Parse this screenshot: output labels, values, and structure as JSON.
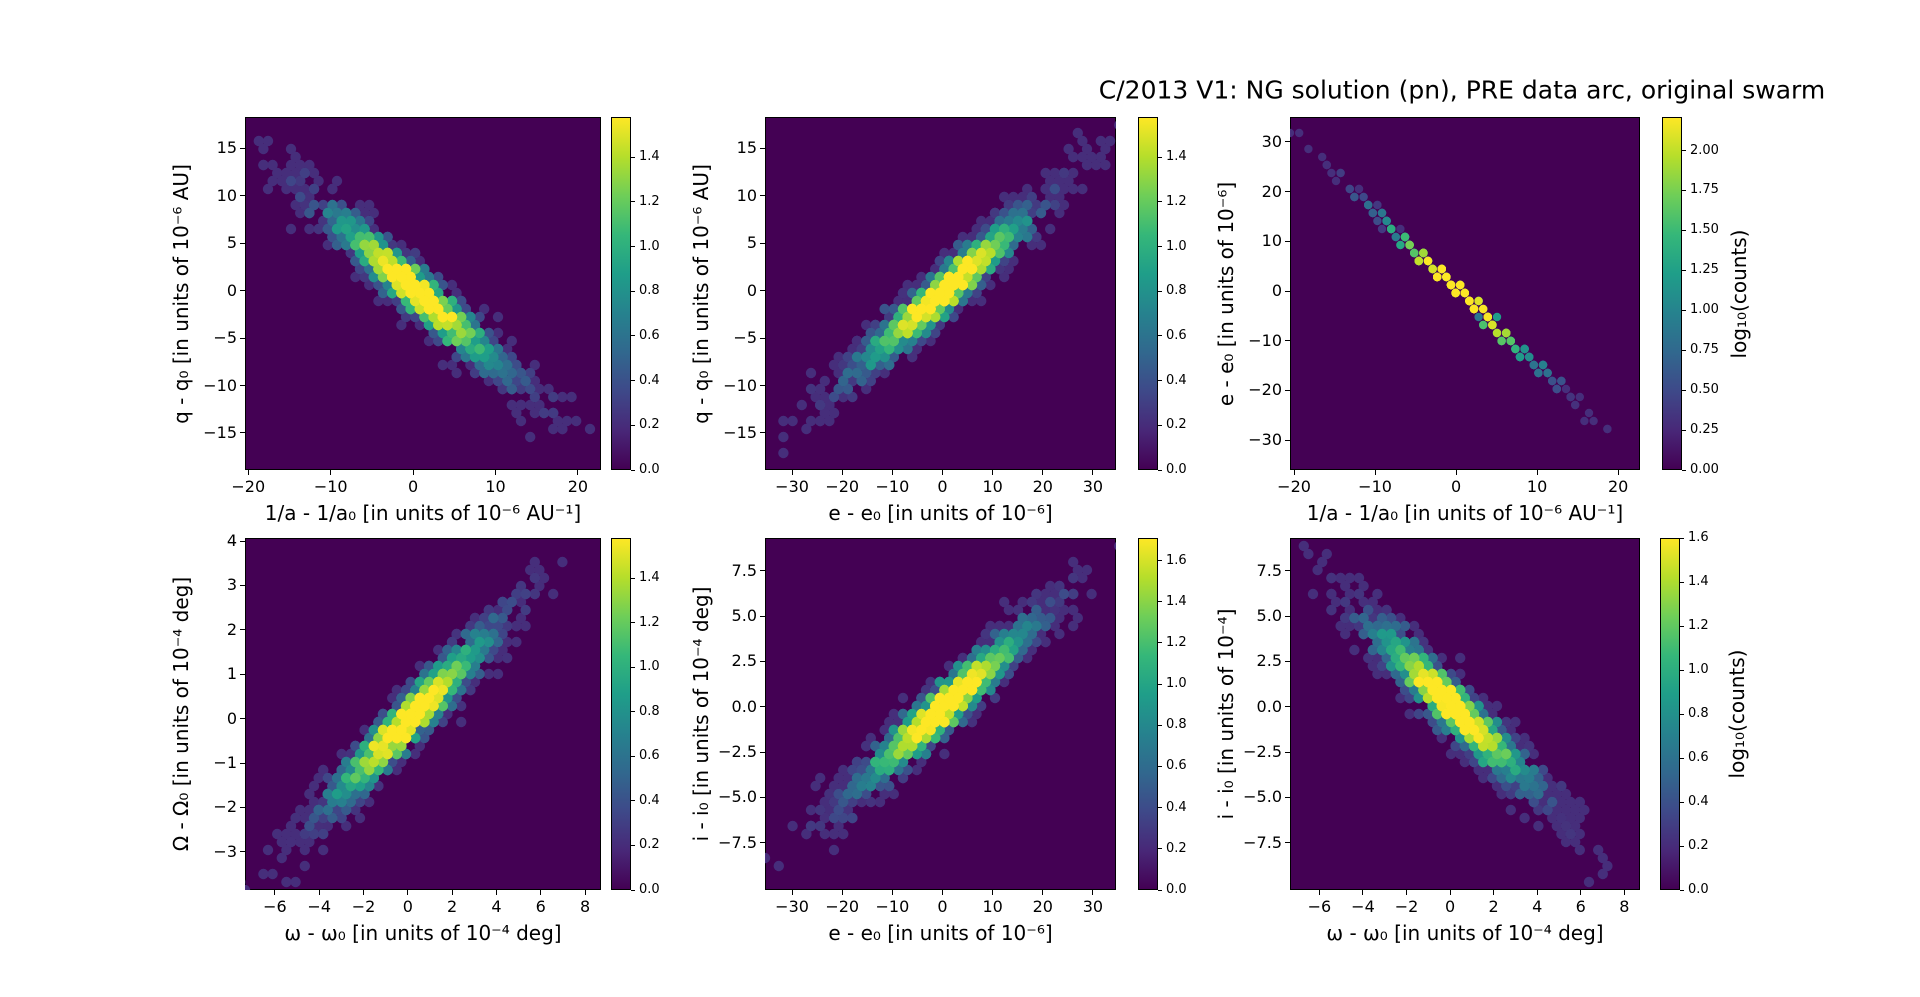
{
  "figure": {
    "title": "C/2013 V1: NG solution (pn), PRE data arc, original swarm",
    "background": "#ffffff",
    "plot_background": "#440154",
    "colormap": "viridis",
    "colorbar_label": "log₁₀(counts)"
  },
  "chart_data": {
    "type": "heatmap",
    "subtype": "hexbin-density-grid",
    "layout": "2 rows x 3 columns, each panel with its own vertical colorbar",
    "panels": [
      {
        "name": "q-vs-inverse-a",
        "xlabel": "1/a - 1/a₀ [in units of 10⁻⁶ AU⁻¹]",
        "ylabel": "q - q₀ [in units of 10⁻⁶ AU]",
        "xlim": [
          -20.4,
          22.8
        ],
        "ylim": [
          -18.9,
          18.3
        ],
        "xtick_values": [
          -20,
          -10,
          0,
          10,
          20
        ],
        "xtick_labels": [
          "−20",
          "−10",
          "0",
          "10",
          "20"
        ],
        "ytick_values": [
          15,
          10,
          5,
          0,
          -5,
          -10,
          -15
        ],
        "ytick_labels": [
          "15",
          "10",
          "5",
          "0",
          "−5",
          "−10",
          "−15"
        ],
        "correlation": "negative",
        "distribution": {
          "sx": 6.8,
          "sy": 5.4,
          "rho": -0.96,
          "n": 1300,
          "dot_radius": 5.2,
          "seed": 11
        },
        "colorbar": {
          "vmax": 1.58,
          "tick_values": [
            0,
            0.2,
            0.4,
            0.6,
            0.8,
            1.0,
            1.2,
            1.4
          ],
          "tick_labels": [
            "0.0",
            "0.2",
            "0.4",
            "0.6",
            "0.8",
            "1.0",
            "1.2",
            "1.4"
          ],
          "label": ""
        }
      },
      {
        "name": "q-vs-e",
        "xlabel": "e - e₀ [in units of 10⁻⁶]",
        "ylabel": "q - q₀ [in units of 10⁻⁶ AU]",
        "xlim": [
          -35.4,
          34.6
        ],
        "ylim": [
          -18.9,
          18.3
        ],
        "xtick_values": [
          -30,
          -20,
          -10,
          0,
          10,
          20,
          30
        ],
        "xtick_labels": [
          "−30",
          "−20",
          "−10",
          "0",
          "10",
          "20",
          "30"
        ],
        "ytick_values": [
          15,
          10,
          5,
          0,
          -5,
          -10,
          -15
        ],
        "ytick_labels": [
          "15",
          "10",
          "5",
          "0",
          "−5",
          "−10",
          "−15"
        ],
        "correlation": "positive",
        "distribution": {
          "sx": 11,
          "sy": 5.4,
          "rho": 0.96,
          "n": 1300,
          "dot_radius": 5.2,
          "seed": 22
        },
        "colorbar": {
          "vmax": 1.58,
          "tick_values": [
            0,
            0.2,
            0.4,
            0.6,
            0.8,
            1.0,
            1.2,
            1.4
          ],
          "tick_labels": [
            "0.0",
            "0.2",
            "0.4",
            "0.6",
            "0.8",
            "1.0",
            "1.2",
            "1.4"
          ],
          "label": ""
        }
      },
      {
        "name": "e-vs-inverse-a",
        "xlabel": "1/a - 1/a₀ [in units of 10⁻⁶ AU⁻¹]",
        "ylabel": "e - e₀ [in units of 10⁻⁶]",
        "xlim": [
          -20.5,
          22.7
        ],
        "ylim": [
          -36,
          35
        ],
        "xtick_values": [
          -20,
          -10,
          0,
          10,
          20
        ],
        "xtick_labels": [
          "−20",
          "−10",
          "0",
          "10",
          "20"
        ],
        "ytick_values": [
          30,
          20,
          10,
          0,
          -10,
          -20,
          -30
        ],
        "ytick_labels": [
          "30",
          "20",
          "10",
          "0",
          "−10",
          "−20",
          "−30"
        ],
        "correlation": "negative-tight-line",
        "distribution": {
          "sx": 6.5,
          "sy": 10.1,
          "rho": -0.9998,
          "n": 600,
          "dot_radius": 4.2,
          "seed": 33
        },
        "colorbar": {
          "vmax": 2.21,
          "tick_values": [
            0,
            0.25,
            0.5,
            0.75,
            1.0,
            1.25,
            1.5,
            1.75,
            2.0
          ],
          "tick_labels": [
            "0.00",
            "0.25",
            "0.50",
            "0.75",
            "1.00",
            "1.25",
            "1.50",
            "1.75",
            "2.00"
          ],
          "label": "log₁₀(counts)"
        }
      },
      {
        "name": "Omega-vs-omega",
        "xlabel": "ω - ω₀ [in units of 10⁻⁴ deg]",
        "ylabel": "Ω - Ω₀ [in units of 10⁻⁴ deg]",
        "xlim": [
          -7.35,
          8.72
        ],
        "ylim": [
          -3.86,
          4.07
        ],
        "xtick_values": [
          -6,
          -4,
          -2,
          0,
          2,
          4,
          6,
          8
        ],
        "xtick_labels": [
          "−6",
          "−4",
          "−2",
          "0",
          "2",
          "4",
          "6",
          "8"
        ],
        "ytick_values": [
          4,
          3,
          2,
          1,
          0,
          -1,
          -2,
          -3
        ],
        "ytick_labels": [
          "4",
          "3",
          "2",
          "1",
          "0",
          "−1",
          "−2",
          "−3"
        ],
        "correlation": "positive",
        "distribution": {
          "sx": 2.3,
          "sy": 1.25,
          "rho": 0.96,
          "n": 1300,
          "dot_radius": 5.2,
          "seed": 44
        },
        "colorbar": {
          "vmax": 1.58,
          "tick_values": [
            0,
            0.2,
            0.4,
            0.6,
            0.8,
            1.0,
            1.2,
            1.4
          ],
          "tick_labels": [
            "0.0",
            "0.2",
            "0.4",
            "0.6",
            "0.8",
            "1.0",
            "1.2",
            "1.4"
          ],
          "label": ""
        }
      },
      {
        "name": "i-vs-e",
        "xlabel": "e - e₀ [in units of 10⁻⁶]",
        "ylabel": "i - i₀ [in units of 10⁻⁴ deg]",
        "xlim": [
          -35.4,
          34.6
        ],
        "ylim": [
          -10.1,
          9.3
        ],
        "xtick_values": [
          -30,
          -20,
          -10,
          0,
          10,
          20,
          30
        ],
        "xtick_labels": [
          "−30",
          "−20",
          "−10",
          "0",
          "10",
          "20",
          "30"
        ],
        "ytick_values": [
          7.5,
          5.0,
          2.5,
          0.0,
          -2.5,
          -5.0,
          -7.5
        ],
        "ytick_labels": [
          "7.5",
          "5.0",
          "2.5",
          "0.0",
          "−2.5",
          "−5.0",
          "−7.5"
        ],
        "correlation": "positive",
        "distribution": {
          "sx": 11,
          "sy": 2.9,
          "rho": 0.96,
          "n": 1300,
          "dot_radius": 5.2,
          "seed": 55
        },
        "colorbar": {
          "vmax": 1.71,
          "tick_values": [
            0,
            0.2,
            0.4,
            0.6,
            0.8,
            1.0,
            1.2,
            1.4,
            1.6
          ],
          "tick_labels": [
            "0.0",
            "0.2",
            "0.4",
            "0.6",
            "0.8",
            "1.0",
            "1.2",
            "1.4",
            "1.6"
          ],
          "label": ""
        }
      },
      {
        "name": "i-vs-omega",
        "xlabel": "ω - ω₀ [in units of 10⁻⁴ deg]",
        "ylabel": "i - i₀ [in units of 10⁻⁴]",
        "xlim": [
          -7.35,
          8.72
        ],
        "ylim": [
          -10.1,
          9.3
        ],
        "xtick_values": [
          -6,
          -4,
          -2,
          0,
          2,
          4,
          6,
          8
        ],
        "xtick_labels": [
          "−6",
          "−4",
          "−2",
          "0",
          "2",
          "4",
          "6",
          "8"
        ],
        "ytick_values": [
          7.5,
          5.0,
          2.5,
          0.0,
          -2.5,
          -5.0,
          -7.5
        ],
        "ytick_labels": [
          "7.5",
          "5.0",
          "2.5",
          "0.0",
          "−2.5",
          "−5.0",
          "−7.5"
        ],
        "correlation": "negative",
        "distribution": {
          "sx": 2.3,
          "sy": 2.8,
          "rho": -0.95,
          "n": 1300,
          "dot_radius": 5.2,
          "seed": 66
        },
        "colorbar": {
          "vmax": 1.6,
          "tick_values": [
            0,
            0.2,
            0.4,
            0.6,
            0.8,
            1.0,
            1.2,
            1.4,
            1.6
          ],
          "tick_labels": [
            "0.0",
            "0.2",
            "0.4",
            "0.6",
            "0.8",
            "1.0",
            "1.2",
            "1.4",
            "1.6"
          ],
          "label": "log₁₀(counts)"
        }
      }
    ]
  }
}
